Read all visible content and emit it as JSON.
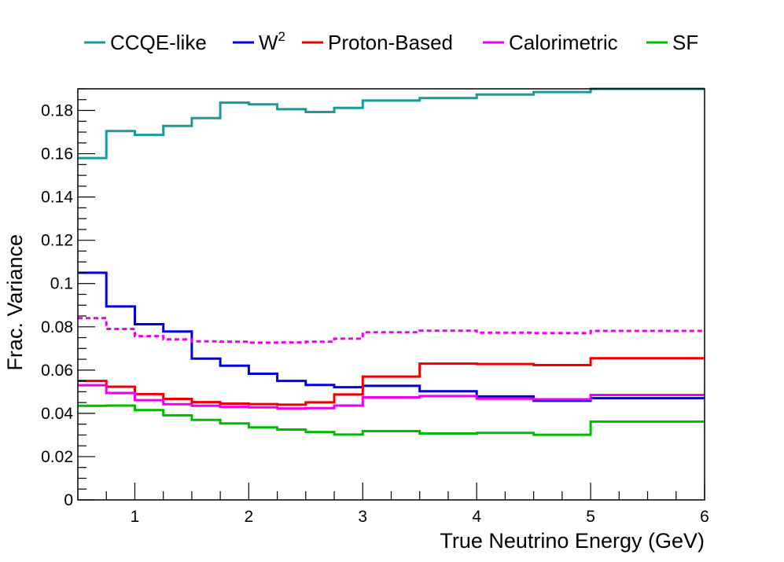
{
  "chart_data": {
    "type": "line",
    "style": "step",
    "xlabel": "True Neutrino Energy (GeV)",
    "ylabel": "Frac. Variance",
    "xlim": [
      0.5,
      6
    ],
    "ylim": [
      0,
      0.19
    ],
    "x_ticks": [
      {
        "v": 1,
        "label": "1"
      },
      {
        "v": 2,
        "label": "2"
      },
      {
        "v": 3,
        "label": "3"
      },
      {
        "v": 4,
        "label": "4"
      },
      {
        "v": 5,
        "label": "5"
      },
      {
        "v": 6,
        "label": "6"
      }
    ],
    "y_ticks": [
      {
        "v": 0,
        "label": "0"
      },
      {
        "v": 0.02,
        "label": "0.02"
      },
      {
        "v": 0.04,
        "label": "0.04"
      },
      {
        "v": 0.06,
        "label": "0.06"
      },
      {
        "v": 0.08,
        "label": "0.08"
      },
      {
        "v": 0.1,
        "label": "0.1"
      },
      {
        "v": 0.12,
        "label": "0.12"
      },
      {
        "v": 0.14,
        "label": "0.14"
      },
      {
        "v": 0.16,
        "label": "0.16"
      },
      {
        "v": 0.18,
        "label": "0.18"
      }
    ],
    "legend_position": "top",
    "grid": false,
    "bin_edges": [
      0.5,
      0.75,
      1.0,
      1.25,
      1.5,
      1.75,
      2.0,
      2.25,
      2.5,
      2.75,
      3.0,
      3.5,
      4.0,
      4.5,
      5.0,
      6.0
    ],
    "series": [
      {
        "name": "CCQE-like",
        "sup": "",
        "color": "#1a9a9a",
        "dashed": false,
        "in_legend": true,
        "values": [
          0.158,
          0.1705,
          0.1687,
          0.1728,
          0.1765,
          0.1836,
          0.1828,
          0.1806,
          0.1793,
          0.1812,
          0.1846,
          0.1857,
          0.1874,
          0.1885,
          0.19
        ]
      },
      {
        "name": "W",
        "sup": "2",
        "color": "#0000dd",
        "dashed": false,
        "in_legend": true,
        "values": [
          0.105,
          0.0894,
          0.0812,
          0.0778,
          0.0653,
          0.062,
          0.0583,
          0.055,
          0.0531,
          0.0521,
          0.0527,
          0.0502,
          0.0478,
          0.0458,
          0.047
        ]
      },
      {
        "name": "Proton-Based",
        "sup": "",
        "color": "#ee0000",
        "dashed": false,
        "in_legend": true,
        "values": [
          0.055,
          0.0523,
          0.0489,
          0.0467,
          0.0452,
          0.0445,
          0.0443,
          0.044,
          0.0451,
          0.0487,
          0.057,
          0.063,
          0.0628,
          0.0623,
          0.0655
        ]
      },
      {
        "name": "Calorimetric",
        "sup": "",
        "color": "#ee00ee",
        "dashed": false,
        "in_legend": true,
        "values": [
          0.053,
          0.0494,
          0.0461,
          0.0442,
          0.0435,
          0.043,
          0.0428,
          0.0423,
          0.0424,
          0.0436,
          0.0474,
          0.048,
          0.0468,
          0.0465,
          0.0485
        ]
      },
      {
        "name": "Calorimetric (dashed)",
        "sup": "",
        "color": "#ee00ee",
        "dashed": true,
        "in_legend": false,
        "values": [
          0.084,
          0.079,
          0.0757,
          0.0742,
          0.0733,
          0.0731,
          0.0727,
          0.0728,
          0.0731,
          0.0745,
          0.0775,
          0.0782,
          0.0773,
          0.0771,
          0.0781
        ]
      },
      {
        "name": "SF",
        "sup": "",
        "color": "#00bb00",
        "dashed": false,
        "in_legend": true,
        "values": [
          0.0435,
          0.0436,
          0.0415,
          0.0391,
          0.037,
          0.0353,
          0.0335,
          0.0325,
          0.0314,
          0.0302,
          0.0318,
          0.0307,
          0.031,
          0.0301,
          0.0362
        ]
      }
    ]
  }
}
